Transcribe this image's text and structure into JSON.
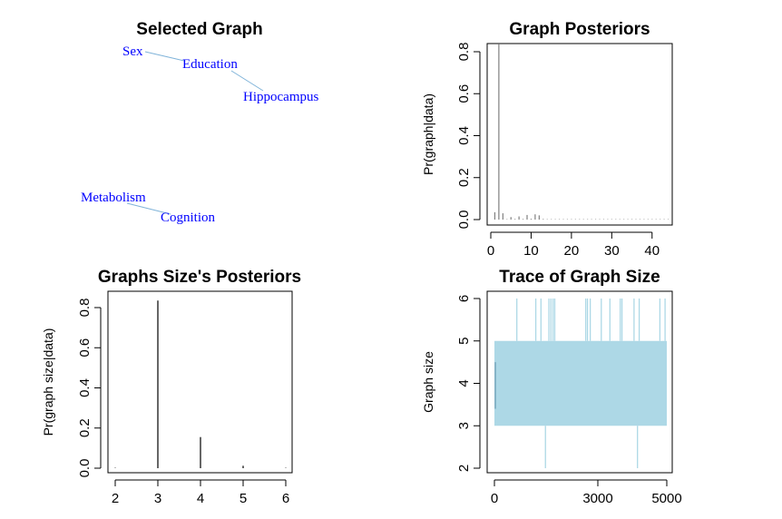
{
  "colors": {
    "node_text": "#0000ff",
    "edge": "#7fb3d9",
    "posterior_bar": "#808080",
    "size_bar": "#000000",
    "trace": "#add8e6",
    "axis": "#000000"
  },
  "chart_data": [
    {
      "id": "selected_graph",
      "type": "diagram",
      "title": "Selected Graph",
      "nodes": [
        {
          "id": "sex",
          "label": "Sex"
        },
        {
          "id": "education",
          "label": "Education"
        },
        {
          "id": "hippocampus",
          "label": "Hippocampus"
        },
        {
          "id": "metabolism",
          "label": "Metabolism"
        },
        {
          "id": "cognition",
          "label": "Cognition"
        }
      ],
      "edges": [
        {
          "from": "sex",
          "to": "education"
        },
        {
          "from": "education",
          "to": "hippocampus"
        },
        {
          "from": "metabolism",
          "to": "cognition"
        }
      ]
    },
    {
      "id": "graph_posteriors",
      "type": "bar",
      "title": "Graph Posteriors",
      "xlabel": "",
      "ylabel": "Pr(graph|data)",
      "xlim": [
        0,
        45
      ],
      "ylim": [
        0,
        0.85
      ],
      "xticks": [
        0,
        10,
        20,
        30,
        40
      ],
      "yticks": [
        0.0,
        0.2,
        0.4,
        0.6,
        0.8
      ],
      "x": [
        1,
        2,
        3,
        4,
        5,
        6,
        7,
        8,
        9,
        10,
        11,
        12,
        13,
        14,
        15,
        16,
        17,
        18,
        19,
        20,
        21,
        22,
        23,
        24,
        25,
        26,
        27,
        28,
        29,
        30,
        31,
        32,
        33,
        34,
        35,
        36,
        37,
        38,
        39,
        40,
        41,
        42,
        43,
        44
      ],
      "values": [
        0.035,
        0.835,
        0.03,
        0.002,
        0.012,
        0.003,
        0.015,
        0.003,
        0.022,
        0.004,
        0.025,
        0.02,
        0.003,
        0.002,
        0.002,
        0.002,
        0.002,
        0.002,
        0.002,
        0.002,
        0.002,
        0.002,
        0.002,
        0.002,
        0.002,
        0.002,
        0.002,
        0.002,
        0.002,
        0.002,
        0.002,
        0.002,
        0.002,
        0.002,
        0.002,
        0.002,
        0.002,
        0.002,
        0.002,
        0.002,
        0.002,
        0.002,
        0.002,
        0.002
      ]
    },
    {
      "id": "graph_size_posteriors",
      "type": "bar",
      "title": "Graphs Size's Posteriors",
      "xlabel": "",
      "ylabel": "Pr(graph size|data)",
      "xlim": [
        1.75,
        6.25
      ],
      "ylim": [
        0,
        0.85
      ],
      "xticks": [
        2,
        3,
        4,
        5,
        6
      ],
      "yticks": [
        0.0,
        0.2,
        0.4,
        0.6,
        0.8
      ],
      "categories": [
        2,
        3,
        4,
        5,
        6
      ],
      "values": [
        0.002,
        0.835,
        0.155,
        0.012,
        0.002
      ]
    },
    {
      "id": "trace_graph_size",
      "type": "line",
      "title": "Trace of Graph Size",
      "xlabel": "",
      "ylabel": "Graph size",
      "xlim": [
        0,
        5000
      ],
      "ylim": [
        2,
        6
      ],
      "xticks": [
        0,
        3000,
        5000
      ],
      "yticks": [
        2,
        3,
        4,
        5,
        6
      ],
      "iterations": 5000,
      "band": [
        3,
        5
      ],
      "spikes": [
        {
          "x": 650,
          "y": 6
        },
        {
          "x": 1200,
          "y": 6
        },
        {
          "x": 1350,
          "y": 6
        },
        {
          "x": 1580,
          "y": 6
        },
        {
          "x": 1640,
          "y": 6
        },
        {
          "x": 1700,
          "y": 6
        },
        {
          "x": 1750,
          "y": 6
        },
        {
          "x": 2650,
          "y": 6
        },
        {
          "x": 2700,
          "y": 6
        },
        {
          "x": 2780,
          "y": 6
        },
        {
          "x": 3100,
          "y": 6
        },
        {
          "x": 3350,
          "y": 6
        },
        {
          "x": 3650,
          "y": 6
        },
        {
          "x": 3700,
          "y": 6
        },
        {
          "x": 4050,
          "y": 6
        },
        {
          "x": 4200,
          "y": 6
        },
        {
          "x": 4800,
          "y": 6
        },
        {
          "x": 4950,
          "y": 6
        },
        {
          "x": 1480,
          "y": 2
        },
        {
          "x": 4150,
          "y": 2
        }
      ]
    }
  ]
}
